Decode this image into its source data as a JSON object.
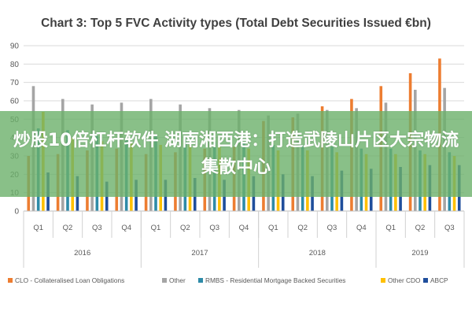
{
  "overlay": {
    "text": "炒股10倍杠杆软件 湖南湘西港：打造武陵山片区大宗物流集散中心"
  },
  "chart_data": {
    "type": "bar",
    "title": "Chart 3: Top 5 FVC Activity types (Total Debt Securities Issued €bn)",
    "xlabel": "",
    "ylabel": "",
    "ylim": [
      0,
      90
    ],
    "yticks": [
      0,
      10,
      20,
      30,
      40,
      50,
      60,
      70,
      80,
      90
    ],
    "grid": true,
    "legend_position": "bottom",
    "categories": [
      "Q1",
      "Q2",
      "Q3",
      "Q4",
      "Q1",
      "Q2",
      "Q3",
      "Q4",
      "Q1",
      "Q2",
      "Q3",
      "Q4",
      "Q1",
      "Q2",
      "Q3"
    ],
    "groups": [
      {
        "label": "2016",
        "count": 4
      },
      {
        "label": "2017",
        "count": 4
      },
      {
        "label": "2018",
        "count": 4
      },
      {
        "label": "2019",
        "count": 3
      }
    ],
    "series": [
      {
        "name": "CLO - Collateralised Loan Obligations",
        "color": "#ED7D31",
        "values": [
          30,
          31,
          33,
          34,
          31,
          32,
          34,
          35,
          49,
          51,
          57,
          61,
          68,
          75,
          83
        ]
      },
      {
        "name": "Other",
        "color": "#A5A5A5",
        "values": [
          68,
          61,
          58,
          59,
          61,
          58,
          56,
          55,
          52,
          53,
          55,
          56,
          59,
          66,
          67
        ]
      },
      {
        "name": "RMBS - Residential Mortgage Backed Securities",
        "color": "#2E8BA8",
        "values": [
          45,
          44,
          41,
          39,
          41,
          39,
          38,
          37,
          36,
          36,
          35,
          34,
          34,
          33,
          32
        ]
      },
      {
        "name": "Other CDO",
        "color": "#FFC000",
        "values": [
          54,
          40,
          38,
          37,
          36,
          36,
          35,
          34,
          33,
          33,
          32,
          31,
          31,
          31,
          30
        ]
      },
      {
        "name": "ABCP",
        "color": "#1F4E9C",
        "values": [
          21,
          19,
          16,
          17,
          17,
          18,
          17,
          19,
          20,
          19,
          22,
          23,
          24,
          25,
          25
        ]
      }
    ]
  }
}
